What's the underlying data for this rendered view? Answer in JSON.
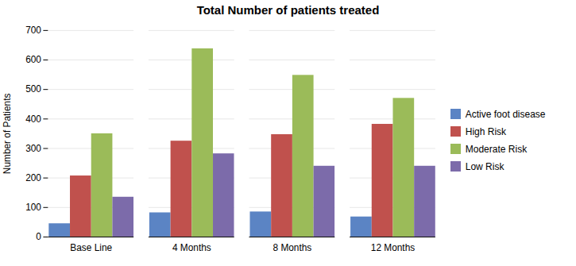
{
  "chart_data": {
    "type": "bar",
    "title": "Total Number of patients treated",
    "ylabel": "Number of Patients",
    "categories": [
      "Base Line",
      "4 Months",
      "8 Months",
      "12 Months"
    ],
    "series": [
      {
        "name": "Active foot disease",
        "color": "#5B84C4",
        "values": [
          45,
          82,
          85,
          68
        ]
      },
      {
        "name": "High Risk",
        "color": "#C0514D",
        "values": [
          207,
          325,
          347,
          382
        ]
      },
      {
        "name": "Moderate Risk",
        "color": "#9BBB59",
        "values": [
          350,
          638,
          548,
          470
        ]
      },
      {
        "name": "Low Risk",
        "color": "#7C6BAA",
        "values": [
          135,
          282,
          240,
          240
        ]
      }
    ],
    "ylim": [
      0,
      700
    ],
    "yticks": [
      0,
      100,
      200,
      300,
      400,
      500,
      600,
      700
    ],
    "grid": true,
    "legend": "right"
  }
}
